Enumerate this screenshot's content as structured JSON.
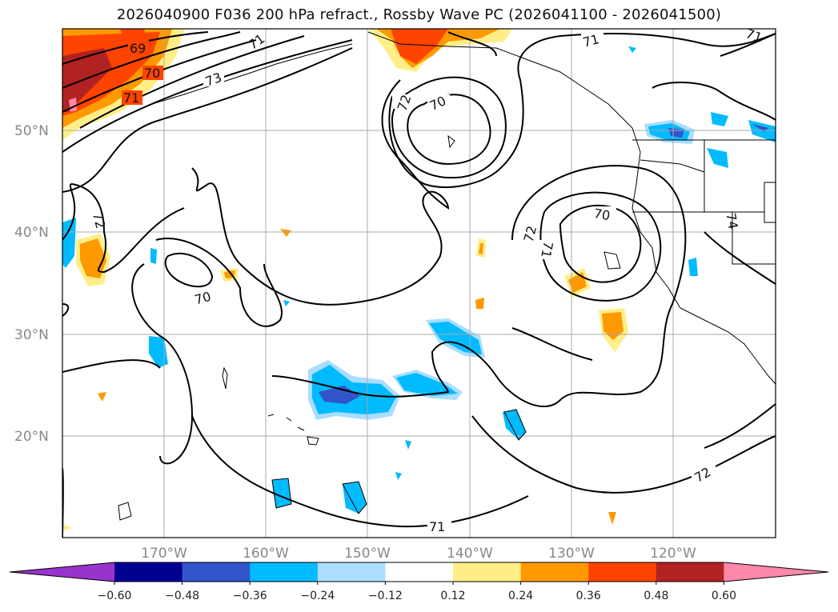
{
  "title": "2026040900 F036 200 hPa refract., Rossby Wave PC (2026041100 - 2026041500)",
  "map": {
    "lat_labels": [
      "50°N",
      "40°N",
      "30°N",
      "20°N"
    ],
    "lon_labels": [
      "170°W",
      "160°W",
      "150°W",
      "140°W",
      "130°W",
      "120°W"
    ],
    "contour_labels": [
      "69",
      "70",
      "71",
      "73",
      "71",
      "72",
      "70",
      "71",
      "71",
      "72",
      "70",
      "71",
      "72",
      "70",
      "74",
      "72",
      "71"
    ]
  },
  "colorbar": {
    "ticks": [
      "−0.60",
      "−0.48",
      "−0.36",
      "−0.24",
      "−0.12",
      "0.12",
      "0.24",
      "0.36",
      "0.48",
      "0.60"
    ],
    "colors": [
      "#9933cc",
      "#000090",
      "#3355cc",
      "#00bbff",
      "#aaddff",
      "#ffffff",
      "#ffee88",
      "#ff9900",
      "#ff4400",
      "#b22222",
      "#ff88aa"
    ]
  }
}
